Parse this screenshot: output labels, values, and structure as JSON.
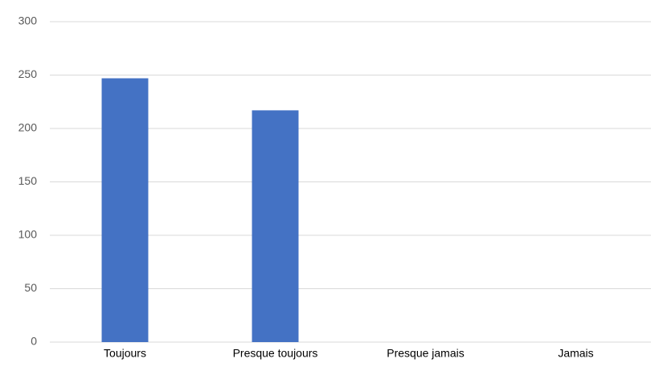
{
  "chart_data": {
    "type": "bar",
    "categories": [
      "Toujours",
      "Presque toujours",
      "Presque jamais",
      "Jamais"
    ],
    "values": [
      247,
      217,
      0,
      0
    ],
    "color": "#4472c4",
    "ylim": [
      0,
      300
    ],
    "yticks": [
      0,
      50,
      100,
      150,
      200,
      250,
      300
    ],
    "grid": true
  }
}
